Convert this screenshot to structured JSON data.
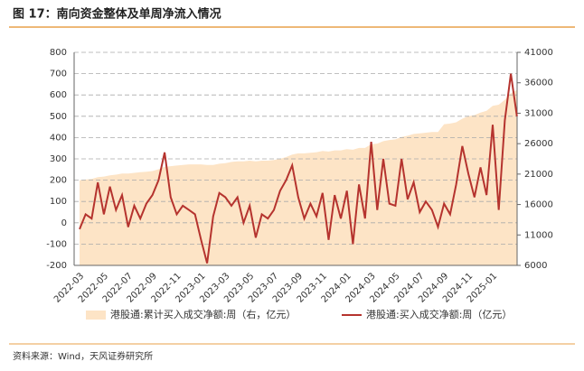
{
  "title": "图 17：南向资金整体及单周净流入情况",
  "source": "资料来源：Wind，天风证券研究所",
  "chart_data": {
    "type": "line",
    "categories": [
      "2022-03",
      null,
      null,
      null,
      "2022-05",
      null,
      null,
      null,
      "2022-07",
      null,
      null,
      null,
      "2022-09",
      null,
      null,
      null,
      "2022-11",
      null,
      null,
      null,
      "2023-01",
      null,
      null,
      null,
      "2023-03",
      null,
      null,
      null,
      "2023-05",
      null,
      null,
      null,
      "2023-07",
      null,
      null,
      null,
      "2023-09",
      null,
      null,
      null,
      "2023-11",
      null,
      null,
      null,
      "2024-01",
      null,
      null,
      null,
      "2024-03",
      null,
      null,
      null,
      "2024-05",
      null,
      null,
      null,
      "2024-07",
      null,
      null,
      null,
      "2024-09",
      null,
      null,
      null,
      "2024-11",
      null,
      null,
      null,
      "2025-01",
      null,
      null,
      null,
      null
    ],
    "series": [
      {
        "name": "港股通:累计买入成交净额:周（右，亿元）",
        "color": "#fde4c6",
        "style": "area",
        "axis": "y2",
        "values": [
          20000,
          20100,
          20200,
          20500,
          20600,
          20800,
          20900,
          21100,
          21100,
          21200,
          21300,
          21400,
          21500,
          21800,
          22200,
          22300,
          22400,
          22500,
          22600,
          22600,
          22600,
          22500,
          22500,
          22700,
          22800,
          23000,
          23100,
          23100,
          23200,
          23100,
          23200,
          23200,
          23300,
          23500,
          23800,
          24200,
          24400,
          24400,
          24500,
          24600,
          24800,
          24700,
          24900,
          24900,
          25100,
          25000,
          25300,
          25300,
          25900,
          26000,
          26400,
          26600,
          26700,
          27100,
          27300,
          27600,
          27700,
          27800,
          27900,
          27900,
          29200,
          29300,
          29500,
          30100,
          30500,
          30700,
          31100,
          31400,
          32200,
          32400,
          33200,
          34300,
          34800
        ]
      },
      {
        "name": "港股通:买入成交净额:周（亿元）",
        "color": "#b5332e",
        "style": "line",
        "values": [
          -30,
          40,
          20,
          190,
          40,
          170,
          60,
          130,
          -20,
          80,
          20,
          90,
          130,
          200,
          330,
          120,
          40,
          80,
          60,
          40,
          -80,
          -190,
          30,
          140,
          120,
          80,
          120,
          0,
          80,
          -70,
          40,
          20,
          60,
          150,
          200,
          270,
          120,
          20,
          90,
          30,
          140,
          -80,
          130,
          20,
          150,
          -100,
          180,
          20,
          380,
          60,
          300,
          90,
          80,
          300,
          110,
          190,
          50,
          100,
          60,
          -20,
          90,
          40,
          180,
          360,
          230,
          120,
          260,
          130,
          460,
          60,
          480,
          700,
          500
        ]
      }
    ],
    "ylim": [
      -200,
      800
    ],
    "yticks": [
      -200,
      -100,
      0,
      100,
      200,
      300,
      400,
      500,
      600,
      700,
      800
    ],
    "y2lim": [
      6000,
      41000
    ],
    "y2ticks": [
      6000,
      11000,
      16000,
      21000,
      26000,
      31000,
      36000,
      41000
    ],
    "grid": true,
    "legend": "bottom"
  }
}
